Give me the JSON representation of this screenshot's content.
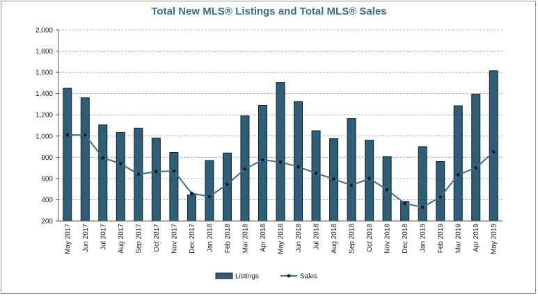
{
  "chart_data": {
    "type": "bar",
    "title": "Total New MLS® Listings and Total MLS® Sales",
    "xlabel": "",
    "ylabel": "",
    "ylim": [
      200,
      2000
    ],
    "yticks": [
      200,
      400,
      600,
      800,
      1000,
      1200,
      1400,
      1600,
      1800,
      2000
    ],
    "ytick_labels": [
      "200",
      "400",
      "600",
      "800",
      "1,000",
      "1,200",
      "1,400",
      "1,600",
      "1,800",
      "2,000"
    ],
    "grid": true,
    "legend": "bottom-center",
    "categories": [
      "May 2017",
      "Jun 2017",
      "Jul 2017",
      "Aug 2017",
      "Sep 2017",
      "Oct 2017",
      "Nov 2017",
      "Dec 2017",
      "Jan 2018",
      "Feb 2018",
      "Mar 2018",
      "Apr 2018",
      "May 2018",
      "Jun 2018",
      "Jul 2018",
      "Aug 2018",
      "Sep 2018",
      "Oct 2018",
      "Nov 2018",
      "Dec 2018",
      "Jan 2019",
      "Feb 2019",
      "Mar 2019",
      "Apr 2019",
      "May 2019"
    ],
    "series": [
      {
        "name": "Listings",
        "type": "bar",
        "color": "#2f5f78",
        "values": [
          1450,
          1360,
          1105,
          1035,
          1075,
          980,
          845,
          445,
          770,
          840,
          1190,
          1290,
          1505,
          1325,
          1050,
          975,
          1165,
          960,
          805,
          385,
          900,
          760,
          1285,
          1395,
          1615
        ]
      },
      {
        "name": "Sales",
        "type": "line",
        "color": "#2f5f78",
        "values": [
          1010,
          1010,
          795,
          740,
          640,
          665,
          670,
          460,
          430,
          545,
          690,
          775,
          755,
          710,
          650,
          595,
          535,
          600,
          495,
          365,
          330,
          425,
          635,
          700,
          850
        ]
      }
    ]
  }
}
